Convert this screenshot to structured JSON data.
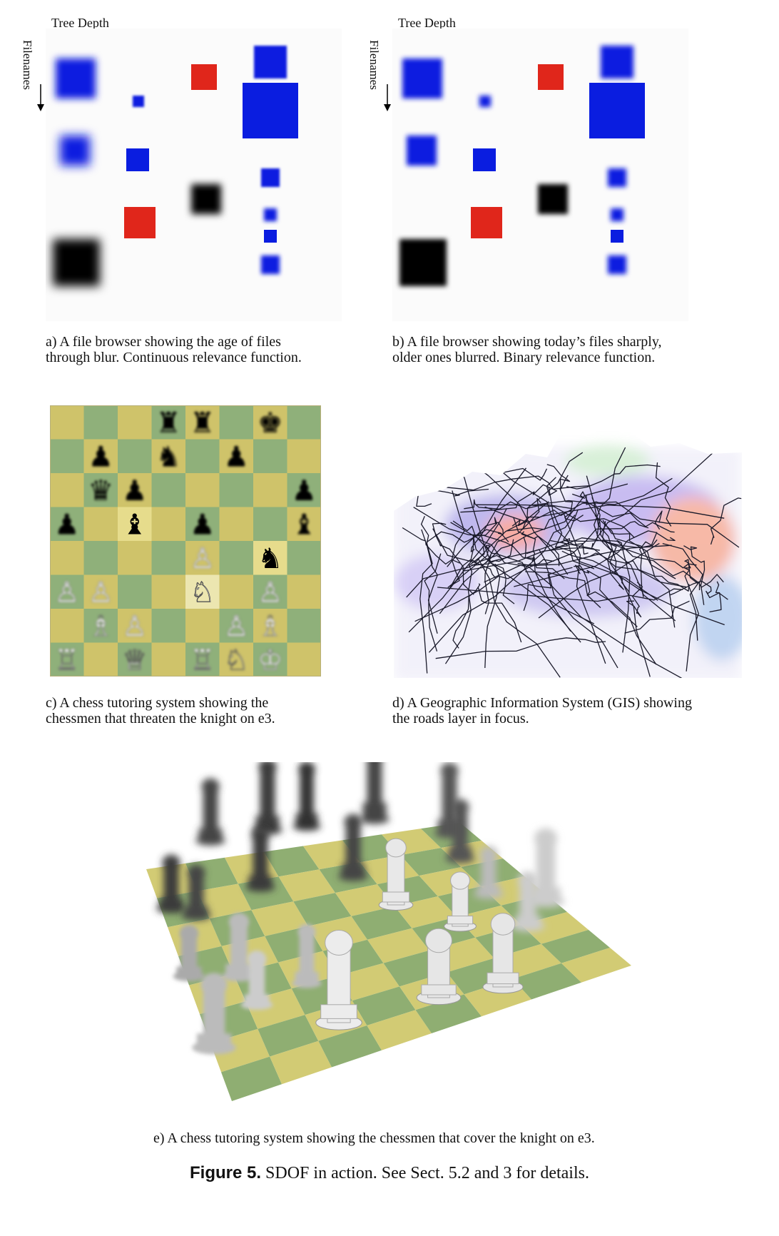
{
  "panel_a": {
    "xaxis": "Tree Depth",
    "yaxis": "Filenames",
    "caption": "a) A file browser showing the age of files\nthrough blur. Continuous relevance function."
  },
  "panel_b": {
    "xaxis": "Tree Depth",
    "yaxis": "Filenames",
    "caption": "b) A file browser showing today’s files sharply,\nolder ones blurred. Binary relevance function."
  },
  "panel_c": {
    "caption": "c) A chess tutoring system showing the\nchessmen that threaten the knight on e3."
  },
  "panel_d": {
    "caption": "d) A Geographic Information System (GIS) showing\nthe roads layer in focus."
  },
  "panel_e": {
    "caption": "e) A chess tutoring system showing the chessmen that cover the knight on e3."
  },
  "figure": {
    "label": "Figure 5.",
    "text": " SDOF in action. See Sect. 5.2 and 3 for details."
  },
  "colors": {
    "blue": "#0a1de0",
    "red": "#e0261b",
    "black": "#000000",
    "board_light": "#cfc36a",
    "board_dark": "#8fb07a"
  }
}
